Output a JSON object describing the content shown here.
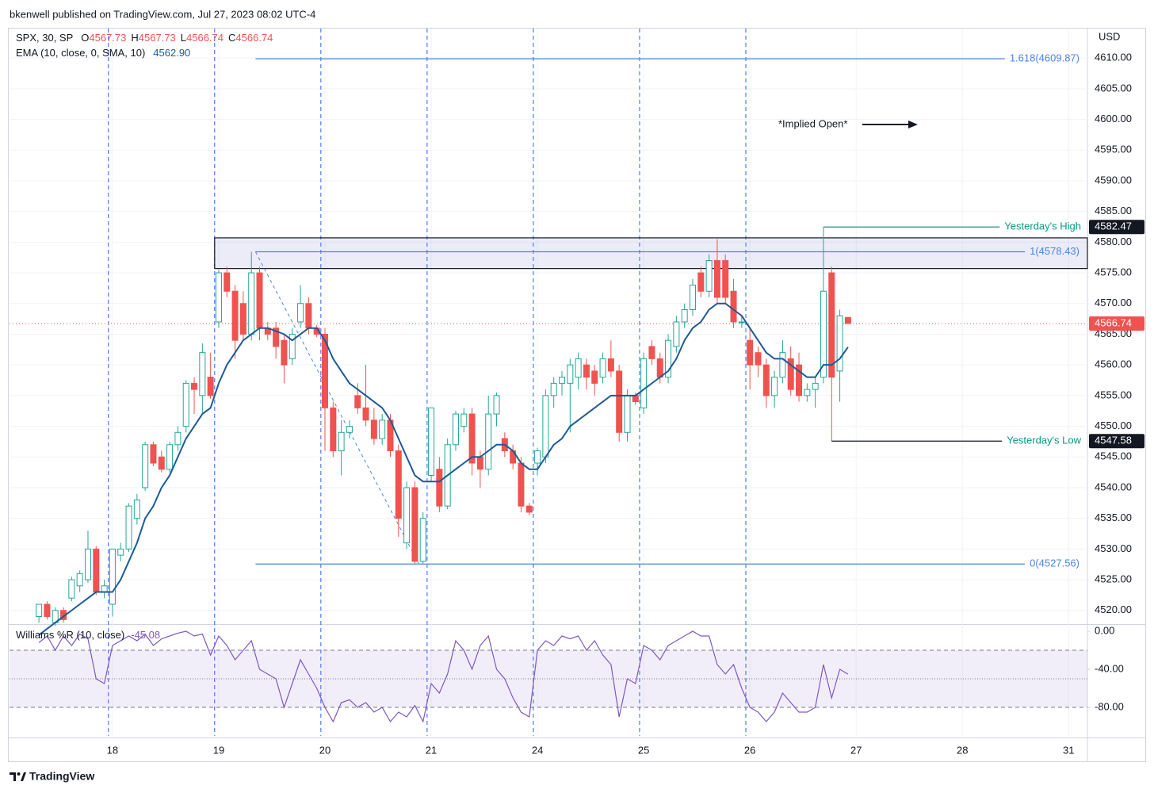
{
  "header": {
    "publisher": "bkenwell published on TradingView.com, Jul 27, 2023 08:02 UTC-4",
    "brand": "TradingView"
  },
  "chart_data": [
    {
      "type": "candlestick",
      "name": "SPX, 30, SP",
      "currency": "USD",
      "ohlc_legend": [
        {
          "key": "O",
          "value": "4567.73"
        },
        {
          "key": "H",
          "value": "4567.73"
        },
        {
          "key": "L",
          "value": "4566.74"
        },
        {
          "key": "C",
          "value": "4566.74"
        }
      ],
      "colors": {
        "up": "#26a69a",
        "down": "#ef5350"
      },
      "xlim": [
        -3.6,
        128.3
      ],
      "xticks": [
        {
          "value": 9,
          "label": "18"
        },
        {
          "value": 22,
          "label": "19"
        },
        {
          "value": 35,
          "label": "20"
        },
        {
          "value": 48,
          "label": "21"
        },
        {
          "value": 61,
          "label": "24"
        },
        {
          "value": 74,
          "label": "25"
        },
        {
          "value": 87,
          "label": "26"
        },
        {
          "value": 100,
          "label": "27"
        },
        {
          "value": 113,
          "label": "28"
        },
        {
          "value": 126,
          "label": "31"
        }
      ],
      "ylim": [
        4517.9,
        4614.8
      ],
      "yticks": [
        {
          "value": 4520,
          "label": "4520.00"
        },
        {
          "value": 4525,
          "label": "4525.00"
        },
        {
          "value": 4530,
          "label": "4530.00"
        },
        {
          "value": 4535,
          "label": "4535.00"
        },
        {
          "value": 4540,
          "label": "4540.00"
        },
        {
          "value": 4545,
          "label": "4545.00"
        },
        {
          "value": 4550,
          "label": "4550.00"
        },
        {
          "value": 4555,
          "label": "4555.00"
        },
        {
          "value": 4560,
          "label": "4560.00"
        },
        {
          "value": 4565,
          "label": "4565.00"
        },
        {
          "value": 4570,
          "label": "4570.00"
        },
        {
          "value": 4575,
          "label": "4575.00"
        },
        {
          "value": 4580,
          "label": "4580.00"
        },
        {
          "value": 4585,
          "label": "4585.00"
        },
        {
          "value": 4590,
          "label": "4590.00"
        },
        {
          "value": 4595,
          "label": "4595.00"
        },
        {
          "value": 4600,
          "label": "4600.00"
        },
        {
          "value": 4605,
          "label": "4605.00"
        },
        {
          "value": 4610,
          "label": "4610.00"
        }
      ],
      "grid": true,
      "candles": [
        [
          4519,
          4521,
          4518,
          4521
        ],
        [
          4521,
          4521.5,
          4518.5,
          4519
        ],
        [
          4518,
          4520.5,
          4517.5,
          4520
        ],
        [
          4520,
          4520.5,
          4518,
          4518.5
        ],
        [
          4522,
          4525.5,
          4521.5,
          4525
        ],
        [
          4524,
          4526.5,
          4523,
          4526
        ],
        [
          4525,
          4533,
          4524.5,
          4530
        ],
        [
          4530,
          4530.5,
          4522.5,
          4523
        ],
        [
          4523,
          4525,
          4522,
          4524
        ],
        [
          4521,
          4530,
          4519,
          4530
        ],
        [
          4529,
          4531,
          4528,
          4530
        ],
        [
          4530,
          4537.5,
          4529.5,
          4537
        ],
        [
          4535,
          4539,
          4534,
          4538
        ],
        [
          4540,
          4547.5,
          4539.5,
          4547
        ],
        [
          4547,
          4547.5,
          4543.5,
          4544
        ],
        [
          4545,
          4546,
          4542.5,
          4543
        ],
        [
          4543,
          4547.5,
          4542.5,
          4547
        ],
        [
          4547,
          4550,
          4546,
          4549
        ],
        [
          4550,
          4557.5,
          4549,
          4557
        ],
        [
          4557,
          4558,
          4552,
          4556
        ],
        [
          4555,
          4563.5,
          4552,
          4562
        ],
        [
          4558,
          4562,
          4554.5,
          4555
        ],
        [
          4567,
          4575.5,
          4566,
          4575
        ],
        [
          4575,
          4576,
          4571,
          4572
        ],
        [
          4572,
          4573,
          4561,
          4564
        ],
        [
          4570,
          4572,
          4564,
          4565
        ],
        [
          4565,
          4578.43,
          4564,
          4575
        ],
        [
          4575,
          4576,
          4564,
          4566
        ],
        [
          4566,
          4567,
          4564,
          4565
        ],
        [
          4566,
          4567,
          4561,
          4563
        ],
        [
          4564,
          4565,
          4557,
          4560
        ],
        [
          4561,
          4566,
          4560,
          4565
        ],
        [
          4567,
          4573,
          4566,
          4570
        ],
        [
          4570,
          4571,
          4565,
          4566
        ],
        [
          4566,
          4566.5,
          4564.5,
          4565
        ],
        [
          4565,
          4566,
          4546,
          4553
        ],
        [
          4553,
          4554,
          4545,
          4546
        ],
        [
          4546,
          4551,
          4542,
          4549
        ],
        [
          4549,
          4551,
          4548,
          4550
        ],
        [
          4555,
          4557,
          4552,
          4553
        ],
        [
          4553,
          4560,
          4550,
          4551
        ],
        [
          4551,
          4553,
          4547,
          4548
        ],
        [
          4548,
          4552,
          4547,
          4551
        ],
        [
          4551,
          4552,
          4545,
          4546
        ],
        [
          4546,
          4547,
          4532,
          4535
        ],
        [
          4531,
          4541,
          4530,
          4540
        ],
        [
          4540,
          4541,
          4527.56,
          4528
        ],
        [
          4528,
          4536,
          4527.56,
          4535
        ],
        [
          4542,
          4553,
          4541,
          4553
        ],
        [
          4543,
          4545,
          4536,
          4537
        ],
        [
          4537,
          4548,
          4536.5,
          4547
        ],
        [
          4547,
          4552.5,
          4546,
          4552
        ],
        [
          4550,
          4553,
          4549,
          4552
        ],
        [
          4552,
          4553,
          4542,
          4544
        ],
        [
          4545,
          4546,
          4540,
          4543
        ],
        [
          4543,
          4555,
          4542,
          4552
        ],
        [
          4552,
          4555.5,
          4550,
          4555
        ],
        [
          4548,
          4549,
          4545,
          4546
        ],
        [
          4546,
          4547,
          4543,
          4544
        ],
        [
          4544,
          4545,
          4536,
          4537
        ],
        [
          4537,
          4537.5,
          4535.5,
          4536
        ],
        [
          4544,
          4546.5,
          4542,
          4546
        ],
        [
          4545,
          4556,
          4544,
          4555
        ],
        [
          4555,
          4558,
          4553,
          4557
        ],
        [
          4557,
          4559,
          4555,
          4558
        ],
        [
          4557,
          4561,
          4549,
          4560
        ],
        [
          4558,
          4562,
          4556,
          4561
        ],
        [
          4560,
          4561,
          4556,
          4558
        ],
        [
          4559,
          4560,
          4555,
          4557
        ],
        [
          4558,
          4562,
          4557,
          4561
        ],
        [
          4561,
          4564,
          4558,
          4559
        ],
        [
          4559,
          4560,
          4547.5,
          4549
        ],
        [
          4549,
          4556,
          4547.5,
          4555
        ],
        [
          4555,
          4555.5,
          4553.5,
          4554
        ],
        [
          4553,
          4562,
          4552,
          4561
        ],
        [
          4563,
          4564,
          4560,
          4561
        ],
        [
          4561,
          4562,
          4557,
          4558
        ],
        [
          4558,
          4565,
          4557,
          4564
        ],
        [
          4563,
          4568,
          4562,
          4567
        ],
        [
          4567,
          4570,
          4566,
          4569
        ],
        [
          4569,
          4574,
          4568,
          4573
        ],
        [
          4575,
          4576,
          4571,
          4572
        ],
        [
          4572,
          4578,
          4571,
          4577
        ],
        [
          4577,
          4580.5,
          4570,
          4571
        ],
        [
          4577,
          4578,
          4570,
          4571
        ],
        [
          4572,
          4574,
          4566,
          4567
        ],
        [
          4567,
          4568,
          4566,
          4567
        ],
        [
          4564,
          4566,
          4556,
          4560
        ],
        [
          4562,
          4563,
          4558,
          4560
        ],
        [
          4560,
          4561,
          4553,
          4555
        ],
        [
          4555,
          4559,
          4553,
          4558
        ],
        [
          4558,
          4564,
          4557,
          4562
        ],
        [
          4561,
          4563,
          4555,
          4556
        ],
        [
          4560,
          4562,
          4554,
          4555
        ],
        [
          4555,
          4557,
          4554,
          4556
        ],
        [
          4556,
          4558,
          4553,
          4557
        ],
        [
          4558,
          4582.47,
          4557,
          4572
        ],
        [
          4575,
          4576,
          4547.58,
          4558
        ],
        [
          4559,
          4569,
          4554,
          4568
        ],
        [
          4567.73,
          4567.73,
          4566.74,
          4566.74
        ]
      ],
      "overlays": [
        {
          "name": "EMA (10, close, 0, SMA, 10)",
          "color": "#1e5a96",
          "last_label": "4562.90",
          "values": [
            4516,
            4517,
            4518,
            4519,
            4520,
            4521,
            4522,
            4523,
            4523,
            4523,
            4525,
            4528,
            4531,
            4535,
            4537,
            4540,
            4542,
            4545,
            4548,
            4550,
            4552,
            4553,
            4557,
            4560,
            4562,
            4564,
            4565,
            4566,
            4566,
            4565.5,
            4565,
            4564,
            4565,
            4566,
            4566,
            4564,
            4561,
            4559,
            4557,
            4556,
            4555,
            4554,
            4553,
            4551,
            4548,
            4545,
            4542,
            4541,
            4541,
            4541,
            4542,
            4543,
            4544,
            4545,
            4545,
            4546,
            4547,
            4547,
            4546,
            4544,
            4543,
            4543,
            4545,
            4547,
            4548,
            4550,
            4551,
            4552,
            4553,
            4554,
            4555,
            4555,
            4555,
            4555,
            4556,
            4557,
            4558,
            4559,
            4561,
            4564,
            4566,
            4567,
            4569,
            4570,
            4570,
            4569,
            4568,
            4566,
            4564,
            4562,
            4561,
            4561,
            4560,
            4559,
            4558,
            4558,
            4560,
            4560,
            4561,
            4562.9
          ]
        }
      ],
      "zone": [
        4575.7,
        4580.7
      ],
      "fib_levels": [
        {
          "label": "1.618(4609.87)",
          "value": 4609.87
        },
        {
          "label": "1(4578.43)",
          "value": 4578.43
        },
        {
          "label": "0(4527.56)",
          "value": 4527.56
        }
      ],
      "levels": [
        {
          "label": "Yesterday's High",
          "value": 4582.47
        },
        {
          "label": "Yesterday's Low",
          "value": 4547.58
        }
      ],
      "annotation": "*Implied Open*"
    },
    {
      "type": "line",
      "name": "Williams %R (10, close)",
      "color": "#7e57c2",
      "ylim": [
        -110,
        5
      ],
      "yticks": [
        {
          "value": 0,
          "label": "0.00"
        },
        {
          "value": -40,
          "label": "-40.00"
        },
        {
          "value": -80,
          "label": "-80.00"
        }
      ],
      "bands": [
        -20,
        -50,
        -80
      ],
      "values": [
        -12,
        -5,
        -20,
        -5,
        -15,
        -3,
        -8,
        -50,
        -55,
        -15,
        -10,
        -5,
        -10,
        -3,
        -15,
        -8,
        -5,
        -2,
        0,
        -5,
        -3,
        -25,
        -5,
        -15,
        -30,
        -20,
        -10,
        -40,
        -45,
        -50,
        -80,
        -55,
        -30,
        -45,
        -60,
        -80,
        -95,
        -75,
        -72,
        -80,
        -75,
        -85,
        -80,
        -95,
        -85,
        -90,
        -78,
        -95,
        -55,
        -65,
        -45,
        -10,
        -20,
        -40,
        -15,
        -5,
        -40,
        -50,
        -70,
        -85,
        -90,
        -20,
        -10,
        -15,
        -5,
        -8,
        -5,
        -20,
        -10,
        -25,
        -35,
        -90,
        -50,
        -55,
        -15,
        -20,
        -30,
        -15,
        -10,
        -5,
        0,
        -5,
        -5,
        -35,
        -45,
        -35,
        -60,
        -80,
        -85,
        -95,
        -85,
        -65,
        -75,
        -85,
        -85,
        -80,
        -35,
        -70,
        -40,
        -45.08
      ]
    }
  ]
}
